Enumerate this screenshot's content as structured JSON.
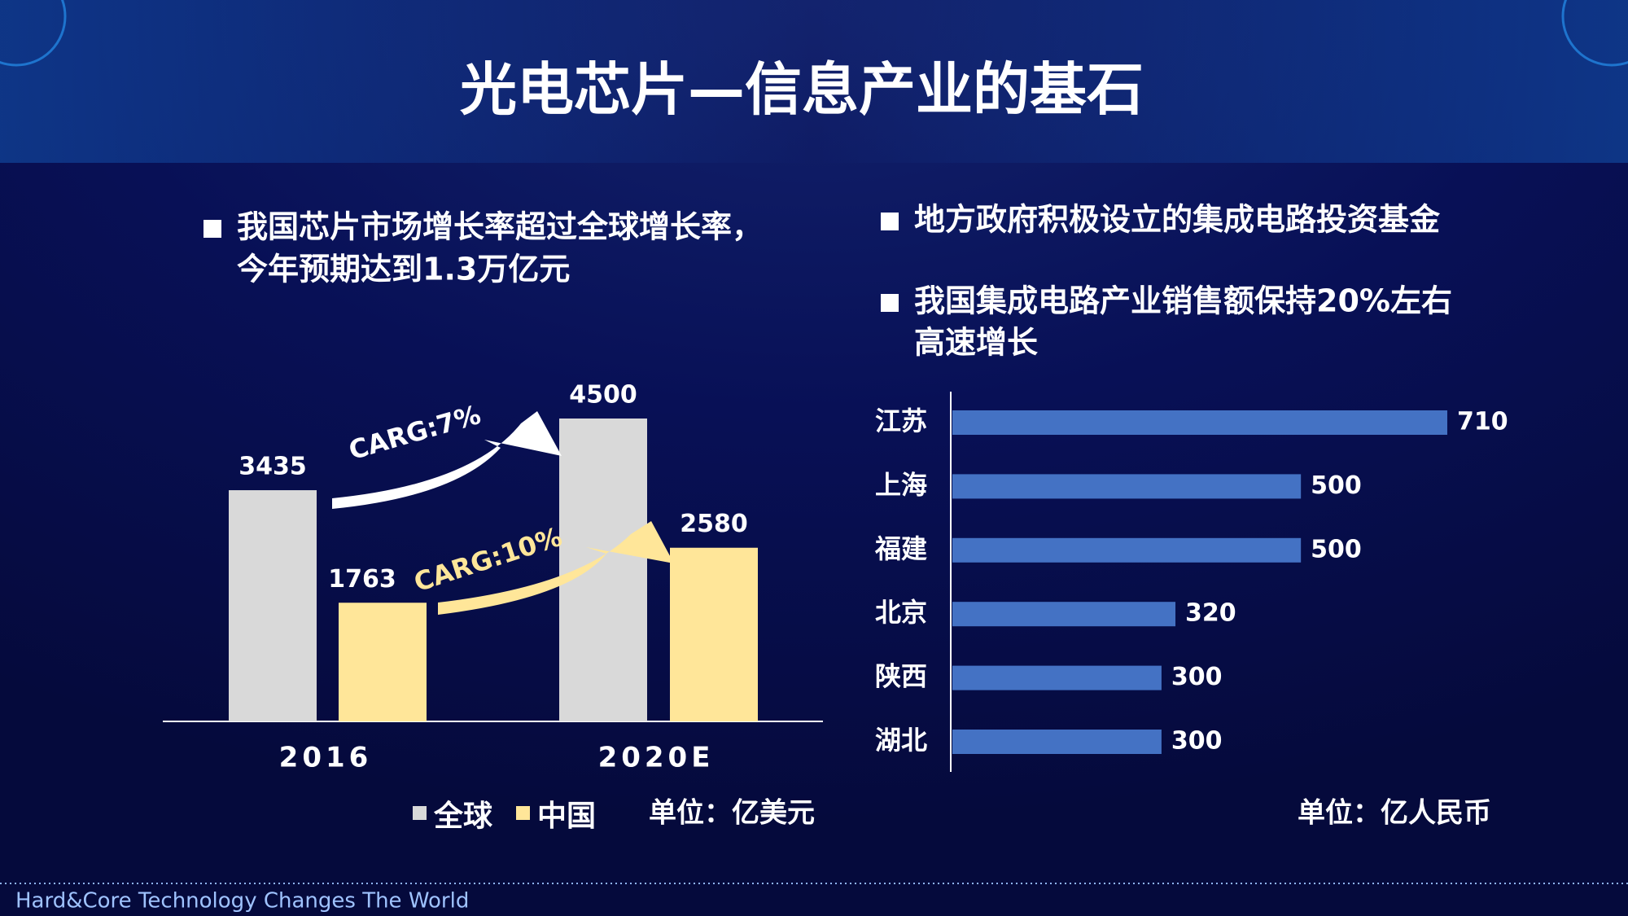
{
  "title": "光电芯片—信息产业的基石",
  "left_bullets": [
    [
      "我国芯片市场增长率超过全球增长率，",
      "今年预期达到1.3万亿元"
    ]
  ],
  "right_bullets": [
    [
      "地方政府积极设立的集成电路投资基金"
    ],
    [
      "我国集成电路产业销售额保持20%左右",
      "高速增长"
    ]
  ],
  "footer": "Hard&Core Technology Changes The World",
  "chart_data": [
    {
      "type": "bar",
      "categories": [
        "2016",
        "2020E"
      ],
      "series": [
        {
          "name": "全球",
          "color": "#d9d9d9",
          "values": [
            3435,
            4500
          ]
        },
        {
          "name": "中国",
          "color": "#ffe699",
          "values": [
            1763,
            2580
          ]
        }
      ],
      "annotations": [
        "CARG:7%",
        "CARG:10%"
      ],
      "unit": "单位：亿美元"
    },
    {
      "type": "barh",
      "categories": [
        "江苏",
        "上海",
        "福建",
        "北京",
        "陕西",
        "湖北"
      ],
      "values": [
        710,
        500,
        500,
        320,
        300,
        300
      ],
      "color": "#4472c4",
      "unit": "单位：亿人民币"
    }
  ]
}
